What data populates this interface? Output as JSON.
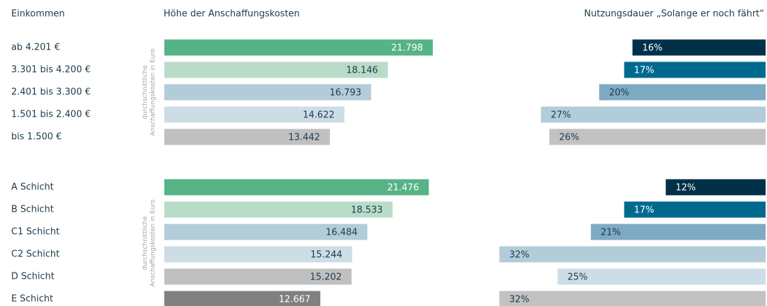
{
  "headers": [
    "Einkommen",
    "Höhe der Anschaffungskosten",
    "Nutzungsdauer „Solange er noch fährt“"
  ],
  "chart_data": [
    {
      "type": "bar",
      "categories": [
        "ab 4.201 €",
        "3.301 bis 4.200 €",
        "2.401 bis 3.300 €",
        "1.501 bis 2.400 €",
        "bis 1.500 €"
      ],
      "ylabel": [
        "durchschnittliche",
        "Anschaffungskosten in Euro"
      ],
      "series": [
        {
          "values": [
            21798,
            18146,
            16793,
            14622,
            13442
          ],
          "value_labels": [
            "21.798",
            "18.146",
            "16.793",
            "14.622",
            "13.442"
          ],
          "colors": [
            "#56b386",
            "#b9dcc8",
            "#b3ccd9",
            "#ccdde6",
            "#c0c0c0"
          ],
          "label_colors": [
            "#ffffff",
            "#1e3a4a",
            "#1e3a4a",
            "#1e3a4a",
            "#1e3a4a"
          ]
        },
        {
          "values": [
            16,
            17,
            20,
            27,
            26
          ],
          "value_labels": [
            "16%",
            "17%",
            "20%",
            "27%",
            "26%"
          ],
          "colors": [
            "#003149",
            "#006a8e",
            "#7eaac3",
            "#b3ccd9",
            "#c2c2c2"
          ],
          "label_colors": [
            "#ffffff",
            "#ffffff",
            "#1e3a4a",
            "#1e3a4a",
            "#1e3a4a"
          ]
        }
      ]
    },
    {
      "type": "bar",
      "categories": [
        "A Schicht",
        "B Schicht",
        "C1 Schicht",
        "C2 Schicht",
        "D Schicht",
        "E Schicht"
      ],
      "ylabel": [
        "durchschnittliche",
        "Anschaffungskosten in Euro"
      ],
      "series": [
        {
          "values": [
            21476,
            18533,
            16484,
            15244,
            15202,
            12667
          ],
          "value_labels": [
            "21.476",
            "18.533",
            "16.484",
            "15.244",
            "15.202",
            "12.667"
          ],
          "colors": [
            "#56b386",
            "#b9dcc8",
            "#b3ccd9",
            "#ccdde6",
            "#c0c0c0",
            "#808080"
          ],
          "label_colors": [
            "#ffffff",
            "#1e3a4a",
            "#1e3a4a",
            "#1e3a4a",
            "#1e3a4a",
            "#ffffff"
          ]
        },
        {
          "values": [
            12,
            17,
            21,
            32,
            25,
            32
          ],
          "value_labels": [
            "12%",
            "17%",
            "21%",
            "32%",
            "25%",
            "32%"
          ],
          "colors": [
            "#003149",
            "#006a8e",
            "#7eaac3",
            "#b3ccd9",
            "#cddde7",
            "#c2c2c2"
          ],
          "label_colors": [
            "#ffffff",
            "#ffffff",
            "#1e3a4a",
            "#1e3a4a",
            "#1e3a4a",
            "#1e3a4a"
          ]
        }
      ]
    }
  ]
}
